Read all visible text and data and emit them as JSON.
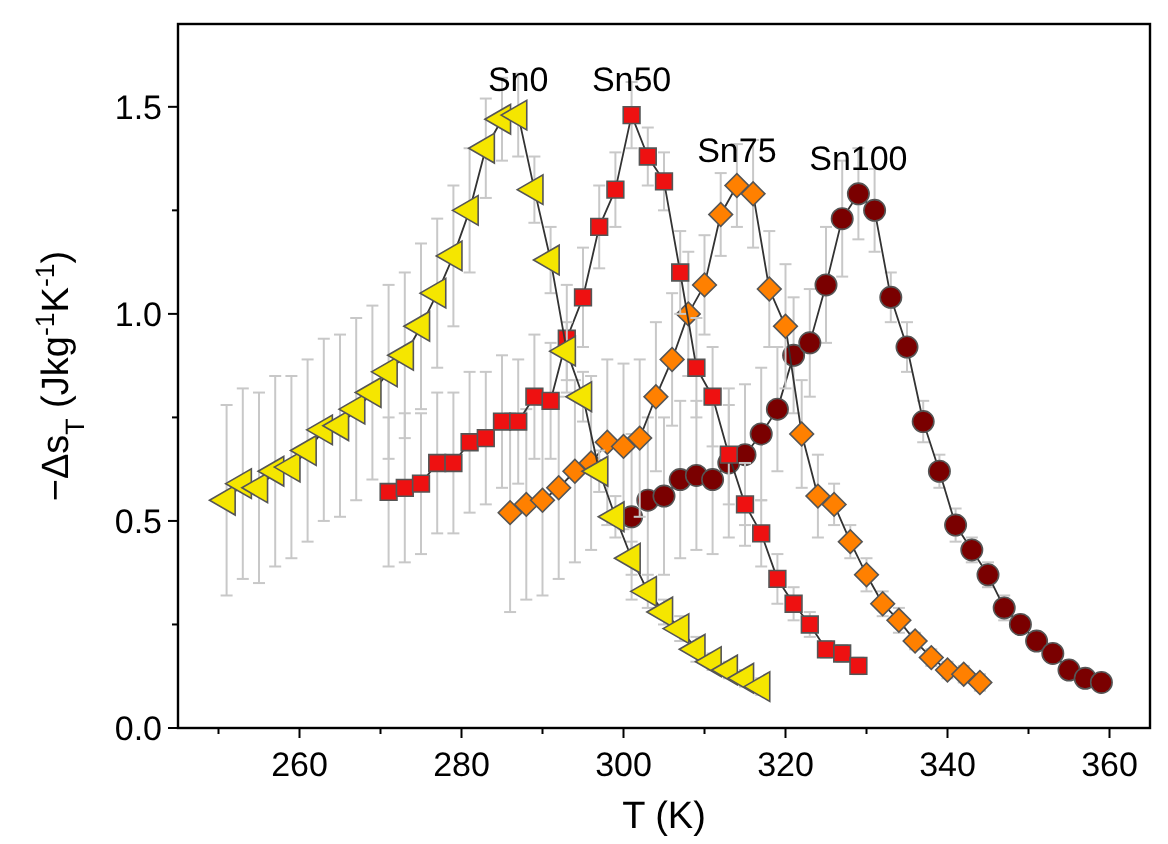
{
  "chart_data": {
    "type": "line",
    "xlabel": "T (K)",
    "ylabel": "−Δs$_{T}$ (Jkg$^{-1}$K$^{-1}$)",
    "xlim": [
      245,
      365
    ],
    "ylim": [
      0,
      1.7
    ],
    "xticks": [
      {
        "value": 250,
        "label": null
      },
      260,
      {
        "value": 270,
        "label": null
      },
      280,
      {
        "value": 290,
        "label": null
      },
      300,
      {
        "value": 310,
        "label": null
      },
      320,
      {
        "value": 330,
        "label": null
      },
      340,
      {
        "value": 350,
        "label": null
      },
      360
    ],
    "yticks": [
      {
        "value": 0,
        "label": "0.0"
      },
      {
        "value": 0.25,
        "label": null
      },
      0.5,
      {
        "value": 0.75,
        "label": null
      },
      {
        "value": 1,
        "label": "1.0"
      },
      {
        "value": 1.25,
        "label": null
      },
      1.5
    ],
    "grid": false,
    "line_style": "solid",
    "series": [
      {
        "name": "Sn0",
        "color": "#f5e600",
        "marker": "triangle",
        "x": [
          251,
          253,
          255,
          257,
          259,
          261,
          263,
          265,
          267,
          269,
          271,
          273,
          275,
          277,
          279,
          281,
          283,
          285,
          287,
          289,
          291,
          293,
          295,
          297,
          299,
          301,
          303,
          305,
          307,
          309,
          311,
          313,
          315,
          317
        ],
        "values": [
          0.55,
          0.59,
          0.58,
          0.62,
          0.63,
          0.67,
          0.72,
          0.73,
          0.77,
          0.81,
          0.86,
          0.9,
          0.97,
          1.05,
          1.14,
          1.25,
          1.4,
          1.47,
          1.48,
          1.3,
          1.13,
          0.91,
          0.8,
          0.62,
          0.51,
          0.41,
          0.33,
          0.28,
          0.24,
          0.19,
          0.16,
          0.14,
          0.12,
          0.1
        ],
        "errors": [
          0.23,
          0.23,
          0.23,
          0.23,
          0.22,
          0.22,
          0.22,
          0.22,
          0.22,
          0.21,
          0.21,
          0.2,
          0.2,
          0.18,
          0.17,
          0.15,
          0.12,
          0.1,
          0.1,
          0.08,
          0.08,
          0.07,
          0.06,
          0.05,
          0.05,
          0.04,
          0.04,
          0.03,
          0.03,
          0.03,
          0.02,
          0.02,
          0.02,
          0.02
        ]
      },
      {
        "name": "Sn50",
        "color": "#ee1111",
        "marker": "square",
        "x": [
          271,
          273,
          275,
          277,
          279,
          281,
          283,
          285,
          287,
          289,
          291,
          293,
          295,
          297,
          299,
          301,
          303,
          305,
          307,
          309,
          311,
          313,
          315,
          317,
          319,
          321,
          323,
          325,
          327,
          329
        ],
        "values": [
          0.57,
          0.58,
          0.59,
          0.64,
          0.64,
          0.69,
          0.7,
          0.74,
          0.74,
          0.8,
          0.79,
          0.94,
          1.04,
          1.21,
          1.3,
          1.48,
          1.38,
          1.32,
          1.1,
          0.87,
          0.8,
          0.66,
          0.54,
          0.47,
          0.36,
          0.3,
          0.25,
          0.19,
          0.18,
          0.15
        ],
        "errors": [
          0.18,
          0.18,
          0.17,
          0.17,
          0.17,
          0.17,
          0.16,
          0.16,
          0.15,
          0.15,
          0.14,
          0.13,
          0.12,
          0.1,
          0.09,
          0.08,
          0.07,
          0.07,
          0.1,
          0.12,
          0.12,
          0.12,
          0.1,
          0.08,
          0.06,
          0.04,
          0.03,
          0.02,
          0.02,
          0.02
        ]
      },
      {
        "name": "Sn75",
        "color": "#ff8000",
        "marker": "diamond",
        "x": [
          286,
          288,
          290,
          292,
          294,
          296,
          298,
          300,
          302,
          304,
          306,
          308,
          310,
          312,
          314,
          316,
          318,
          320,
          322,
          324,
          326,
          328,
          330,
          332,
          334,
          336,
          338,
          340,
          342,
          344
        ],
        "values": [
          0.52,
          0.54,
          0.55,
          0.58,
          0.62,
          0.64,
          0.69,
          0.68,
          0.7,
          0.8,
          0.89,
          1,
          1.07,
          1.24,
          1.31,
          1.29,
          1.06,
          0.97,
          0.71,
          0.56,
          0.54,
          0.45,
          0.37,
          0.3,
          0.26,
          0.21,
          0.17,
          0.14,
          0.13,
          0.11
        ],
        "errors": [
          0.24,
          0.23,
          0.23,
          0.22,
          0.22,
          0.21,
          0.2,
          0.2,
          0.19,
          0.18,
          0.16,
          0.15,
          0.12,
          0.1,
          0.1,
          0.13,
          0.14,
          0.15,
          0.13,
          0.1,
          0.05,
          0.04,
          0.04,
          0.03,
          0.03,
          0.02,
          0.02,
          0.02,
          0.02,
          0.02
        ]
      },
      {
        "name": "Sn100",
        "color": "#7a0000",
        "marker": "circle",
        "x": [
          301,
          303,
          305,
          307,
          309,
          311,
          313,
          315,
          317,
          319,
          321,
          323,
          325,
          327,
          329,
          331,
          333,
          335,
          337,
          339,
          341,
          343,
          345,
          347,
          349,
          351,
          353,
          355,
          357,
          359
        ],
        "values": [
          0.51,
          0.55,
          0.56,
          0.6,
          0.61,
          0.6,
          0.64,
          0.66,
          0.71,
          0.77,
          0.9,
          0.93,
          1.07,
          1.23,
          1.29,
          1.25,
          1.04,
          0.92,
          0.74,
          0.62,
          0.49,
          0.43,
          0.37,
          0.29,
          0.25,
          0.21,
          0.18,
          0.14,
          0.12,
          0.11
        ],
        "errors": [
          0.2,
          0.2,
          0.19,
          0.19,
          0.18,
          0.18,
          0.18,
          0.17,
          0.16,
          0.15,
          0.14,
          0.13,
          0.14,
          0.14,
          0.11,
          0.1,
          0.06,
          0.06,
          0.05,
          0.04,
          0.04,
          0.03,
          0.03,
          0.03,
          0.02,
          0.02,
          0.02,
          0.02,
          0.02,
          0.02
        ]
      }
    ]
  }
}
